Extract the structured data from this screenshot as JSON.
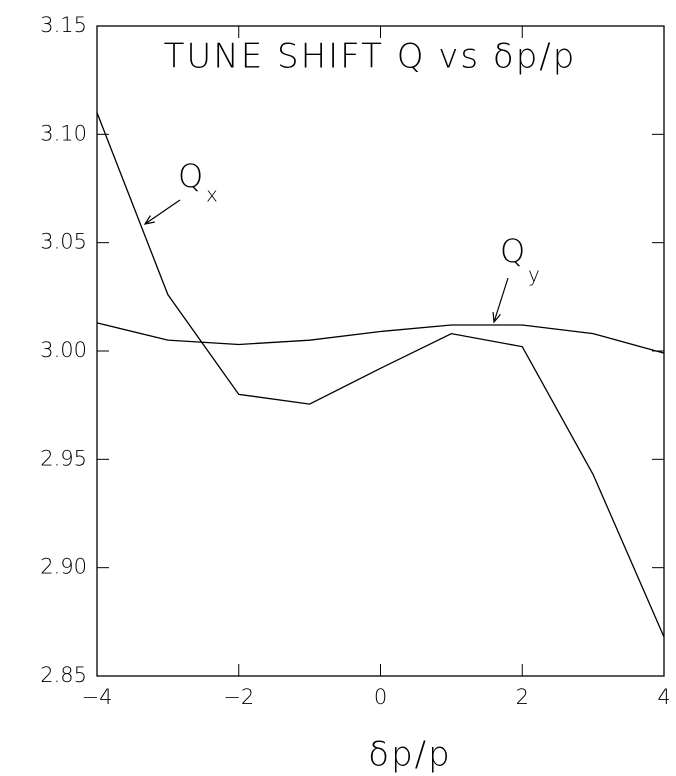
{
  "chart_data": {
    "type": "line",
    "title": "TUNE SHIFT Q vs δp/p",
    "x_label": "δp/p",
    "x": [
      -4,
      -3,
      -2,
      -1,
      0,
      1,
      2,
      3,
      4
    ],
    "series": [
      {
        "name": "Q",
        "subscript": "x",
        "color": "#000000",
        "values": [
          3.11,
          3.026,
          2.98,
          2.9755,
          2.992,
          3.008,
          3.002,
          2.943,
          2.868
        ]
      },
      {
        "name": "Q",
        "subscript": "y",
        "color": "#000000",
        "values": [
          3.013,
          3.005,
          3.003,
          3.005,
          3.009,
          3.012,
          3.012,
          3.008,
          2.999
        ]
      }
    ],
    "xlim": [
      -4,
      4
    ],
    "ylim": [
      2.85,
      3.15
    ],
    "xticks": [
      {
        "value": -4,
        "label": "−4"
      },
      {
        "value": -2,
        "label": "−2"
      },
      0,
      2,
      4
    ],
    "yticks": [
      {
        "value": 2.85,
        "label": "2.85"
      },
      {
        "value": 2.9,
        "label": "2.90"
      },
      {
        "value": 2.95,
        "label": "2.95"
      },
      {
        "value": 3.0,
        "label": "3.00"
      },
      {
        "value": 3.05,
        "label": "3.05"
      },
      {
        "value": 3.1,
        "label": "3.10"
      },
      {
        "value": 3.15,
        "label": "3.15"
      }
    ],
    "grid": false
  }
}
